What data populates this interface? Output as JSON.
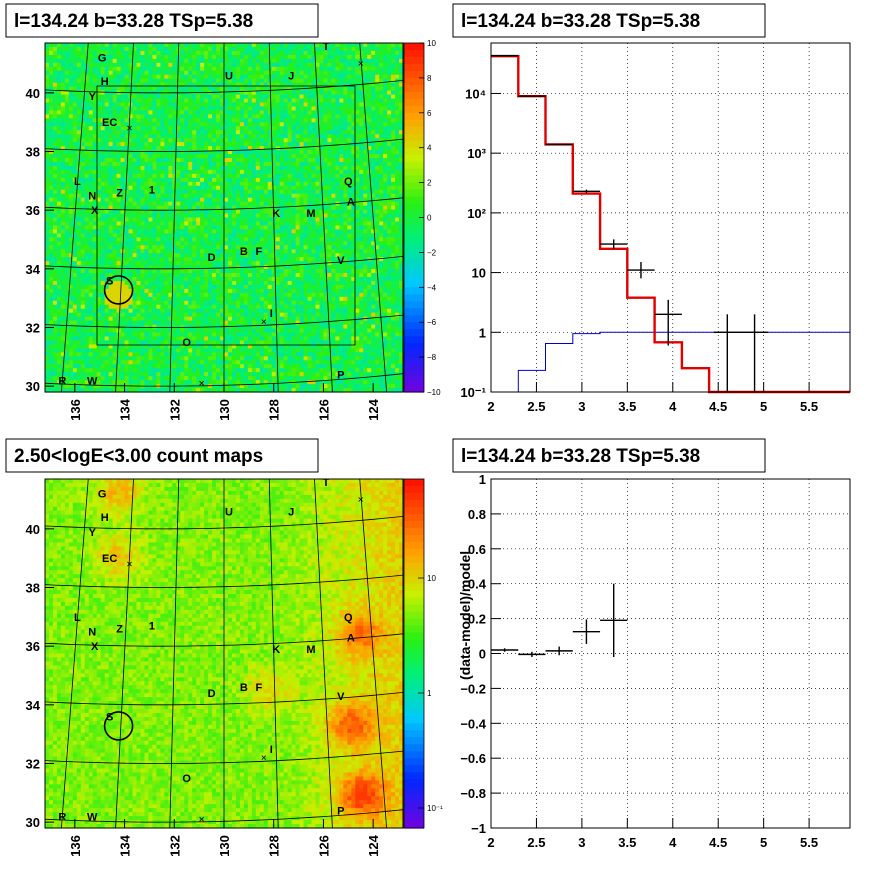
{
  "panels": {
    "tl_title": "l=134.24 b=33.28 TSp=5.38",
    "tr_title": "l=134.24 b=33.28 TSp=5.38",
    "bl_title": "2.50<logE<3.00 count maps",
    "br_title": "l=134.24 b=33.28 TSp=5.38"
  },
  "chart_data": [
    {
      "type": "heatmap",
      "title": "l=134.24 b=33.28 TSp=5.38",
      "xlim": [
        137.2,
        122.8
      ],
      "ylim": [
        29.8,
        41.7
      ],
      "x_ticks": [
        "136",
        "134",
        "132",
        "130",
        "128",
        "126",
        "124"
      ],
      "y_ticks": [
        "30",
        "32",
        "34",
        "36",
        "38",
        "40"
      ],
      "colorbar": {
        "range": [
          -10,
          10
        ],
        "ticks": [
          "10",
          "8",
          "6",
          "4",
          "2",
          "0",
          "−2",
          "−4",
          "−6",
          "−8",
          "−10"
        ]
      },
      "sources": [
        {
          "label": "G",
          "l": 134.9,
          "b": 41.2
        },
        {
          "label": "H",
          "l": 134.8,
          "b": 40.4
        },
        {
          "label": "Y",
          "l": 135.3,
          "b": 39.9
        },
        {
          "label": "EC",
          "l": 134.6,
          "b": 39.0
        },
        {
          "label": "U",
          "l": 129.8,
          "b": 40.6
        },
        {
          "label": "J",
          "l": 127.3,
          "b": 40.6
        },
        {
          "label": "T",
          "l": 125.9,
          "b": 41.6
        },
        {
          "label": "L",
          "l": 135.9,
          "b": 37.0
        },
        {
          "label": "N",
          "l": 135.3,
          "b": 36.5
        },
        {
          "label": "Z",
          "l": 134.2,
          "b": 36.6
        },
        {
          "label": "1",
          "l": 132.9,
          "b": 36.7
        },
        {
          "label": "X",
          "l": 135.2,
          "b": 36.0
        },
        {
          "label": "Q",
          "l": 125.0,
          "b": 37.0
        },
        {
          "label": "A",
          "l": 124.9,
          "b": 36.3
        },
        {
          "label": "K",
          "l": 127.9,
          "b": 35.9
        },
        {
          "label": "M",
          "l": 126.5,
          "b": 35.9
        },
        {
          "label": "D",
          "l": 130.5,
          "b": 34.4
        },
        {
          "label": "B",
          "l": 129.2,
          "b": 34.6
        },
        {
          "label": "F",
          "l": 128.6,
          "b": 34.6
        },
        {
          "label": "V",
          "l": 125.3,
          "b": 34.3
        },
        {
          "label": "S",
          "l": 134.6,
          "b": 33.6
        },
        {
          "label": "I",
          "l": 128.1,
          "b": 32.5
        },
        {
          "label": "O",
          "l": 131.5,
          "b": 31.5
        },
        {
          "label": "R",
          "l": 136.5,
          "b": 30.2
        },
        {
          "label": "W",
          "l": 135.3,
          "b": 30.2
        },
        {
          "label": "P",
          "l": 125.3,
          "b": 30.4
        }
      ],
      "circle": {
        "l": 134.24,
        "b": 33.28
      }
    },
    {
      "type": "line",
      "title": "l=134.24 b=33.28 TSp=5.38",
      "xlim": [
        2.0,
        5.95
      ],
      "y_log": true,
      "ylim": [
        0.1,
        70000
      ],
      "grid": true,
      "x_ticks": [
        "2",
        "2.5",
        "3",
        "3.5",
        "4",
        "4.5",
        "5",
        "5.5"
      ],
      "y_ticks": [
        "10⁴",
        "10³",
        "10²",
        "10",
        "1",
        "10⁻¹"
      ],
      "model_total": {
        "edges": [
          2.0,
          2.3,
          2.6,
          2.9,
          3.2,
          3.5,
          3.8,
          4.1,
          4.4,
          5.95
        ],
        "values": [
          42000,
          9000,
          1400,
          210,
          25,
          3.8,
          0.68,
          0.25,
          0.1
        ]
      },
      "model_source": {
        "edges": [
          2.0,
          2.3,
          2.6,
          2.9,
          3.2,
          5.95
        ],
        "values": [
          0.1,
          0.23,
          0.65,
          0.95,
          1.0
        ]
      },
      "data_points": [
        {
          "x": 2.15,
          "y": 43000,
          "xerr": 0.15,
          "ylo": 43000,
          "yhi": 43000
        },
        {
          "x": 2.45,
          "y": 9000,
          "xerr": 0.15,
          "ylo": 9000,
          "yhi": 9000
        },
        {
          "x": 2.75,
          "y": 1400,
          "xerr": 0.15,
          "ylo": 1400,
          "yhi": 1400
        },
        {
          "x": 3.05,
          "y": 230,
          "xerr": 0.15,
          "ylo": 215,
          "yhi": 245
        },
        {
          "x": 3.35,
          "y": 30,
          "xerr": 0.15,
          "ylo": 25,
          "yhi": 36
        },
        {
          "x": 3.65,
          "y": 11,
          "xerr": 0.15,
          "ylo": 8,
          "yhi": 15
        },
        {
          "x": 3.95,
          "y": 2,
          "xerr": 0.15,
          "ylo": 0.6,
          "yhi": 3.5
        },
        {
          "x": 4.6,
          "y": 1,
          "xerr": 0.15,
          "ylo": 0.1,
          "yhi": 2.0
        },
        {
          "x": 4.9,
          "y": 1,
          "xerr": 0.15,
          "ylo": 0.1,
          "yhi": 2.0
        }
      ]
    },
    {
      "type": "heatmap",
      "title": "2.50<logE<3.00 count maps",
      "xlim": [
        137.2,
        122.8
      ],
      "ylim": [
        29.8,
        41.7
      ],
      "x_ticks": [
        "136",
        "134",
        "132",
        "130",
        "128",
        "126",
        "124"
      ],
      "y_ticks": [
        "30",
        "32",
        "34",
        "36",
        "38",
        "40"
      ],
      "colorbar": {
        "scale": "log",
        "ticks": [
          "10",
          "1",
          "10⁻¹"
        ]
      }
    },
    {
      "type": "scatter",
      "title": "l=134.24 b=33.28 TSp=5.38",
      "ylabel": "(data-model)/model",
      "xlim": [
        2.0,
        5.95
      ],
      "ylim": [
        -1,
        1
      ],
      "grid": true,
      "x_ticks": [
        "2",
        "2.5",
        "3",
        "3.5",
        "4",
        "4.5",
        "5",
        "5.5"
      ],
      "y_ticks": [
        "1",
        "0.8",
        "0.6",
        "0.4",
        "0.2",
        "0",
        "−0.2",
        "−0.4",
        "−0.6",
        "−0.8",
        "−1"
      ],
      "points": [
        {
          "x": 2.15,
          "y": 0.02,
          "xerr": 0.15,
          "yerr": 0.01
        },
        {
          "x": 2.45,
          "y": -0.005,
          "xerr": 0.15,
          "yerr": 0.015
        },
        {
          "x": 2.75,
          "y": 0.015,
          "xerr": 0.15,
          "yerr": 0.025
        },
        {
          "x": 3.05,
          "y": 0.125,
          "xerr": 0.15,
          "yerr": 0.07
        },
        {
          "x": 3.35,
          "y": 0.19,
          "xerr": 0.15,
          "yerr": 0.21
        }
      ]
    }
  ]
}
